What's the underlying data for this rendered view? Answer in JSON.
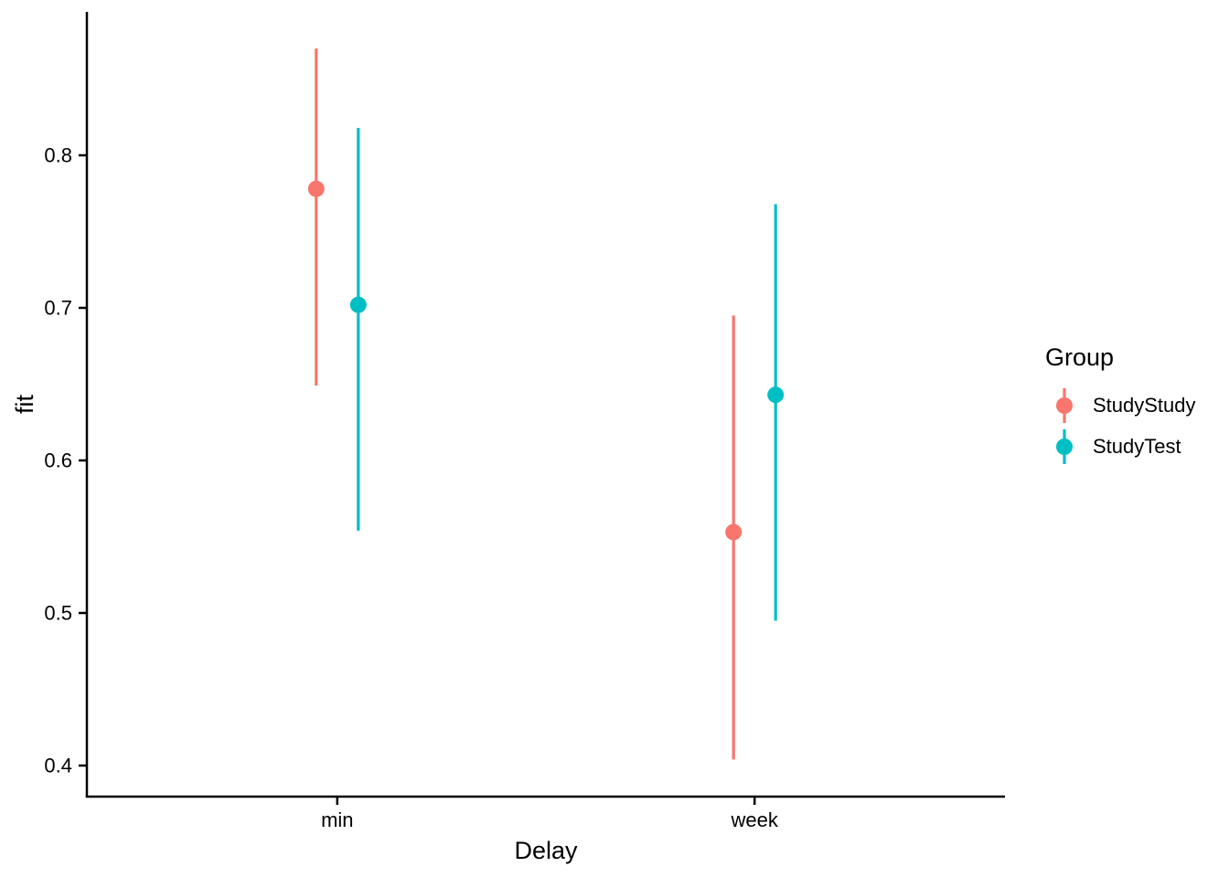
{
  "figure": {
    "background": "#FFFFFF"
  },
  "chart_data": {
    "type": "pointrange",
    "title": "",
    "xlabel": "Delay",
    "ylabel": "fit",
    "categories": [
      "min",
      "week"
    ],
    "yticks": [
      "0.4",
      "0.5",
      "0.6",
      "0.7",
      "0.8"
    ],
    "ylim": [
      0.38,
      0.894
    ],
    "grid": false,
    "axis_color": "#000000",
    "text_color": "#000000",
    "legend": {
      "title": "Group",
      "position": "right"
    },
    "series": [
      {
        "name": "StudyStudy",
        "color": "#F8766D",
        "points": [
          {
            "x": "min",
            "y": 0.778,
            "ymin": 0.649,
            "ymax": 0.87
          },
          {
            "x": "week",
            "y": 0.553,
            "ymin": 0.404,
            "ymax": 0.695
          }
        ]
      },
      {
        "name": "StudyTest",
        "color": "#00BFC4",
        "points": [
          {
            "x": "min",
            "y": 0.702,
            "ymin": 0.554,
            "ymax": 0.818
          },
          {
            "x": "week",
            "y": 0.643,
            "ymin": 0.495,
            "ymax": 0.768
          }
        ]
      }
    ]
  }
}
